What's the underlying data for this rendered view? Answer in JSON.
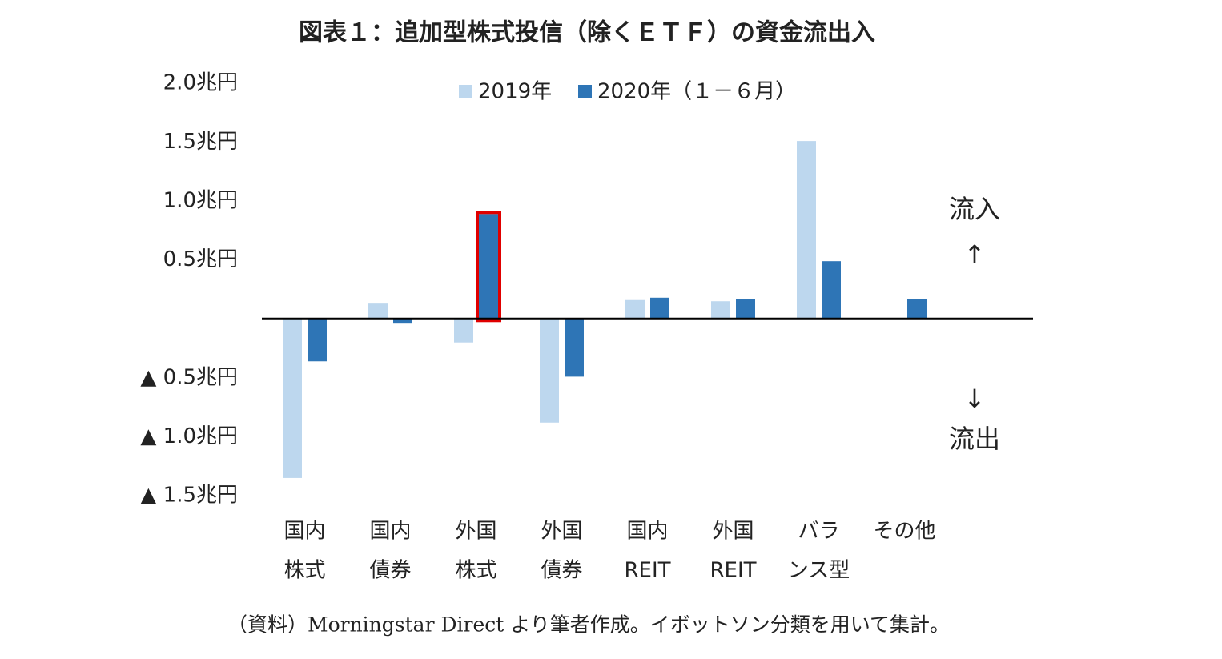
{
  "chart_data": {
    "type": "bar",
    "title": "図表１：追加型株式投信（除くＥＴＦ）の資金流出入",
    "categories": [
      [
        "国内",
        "株式"
      ],
      [
        "国内",
        "債券"
      ],
      [
        "外国",
        "株式"
      ],
      [
        "外国",
        "債券"
      ],
      [
        "国内",
        "REIT"
      ],
      [
        "外国",
        "REIT"
      ],
      [
        "バラ",
        "ンス型"
      ],
      [
        "その他"
      ]
    ],
    "series": [
      {
        "name": "2019年",
        "color": "#bdd7ee",
        "values": [
          -1.35,
          0.13,
          -0.2,
          -0.88,
          0.16,
          0.15,
          1.51,
          0
        ]
      },
      {
        "name": "2020年（１－６月）",
        "color": "#2e75b6",
        "values": [
          -0.36,
          -0.04,
          0.89,
          -0.49,
          0.18,
          0.17,
          0.49,
          0.17
        ]
      }
    ],
    "ylim": [
      -1.5,
      2.0
    ],
    "yticks": [
      {
        "value": 2.0,
        "label": "2.0兆円"
      },
      {
        "value": 1.5,
        "label": "1.5兆円"
      },
      {
        "value": 1.0,
        "label": "1.0兆円"
      },
      {
        "value": 0.5,
        "label": "0.5兆円"
      },
      {
        "value": -0.5,
        "label": "▲ 0.5兆円"
      },
      {
        "value": -1.0,
        "label": "▲ 1.0兆円"
      },
      {
        "value": -1.5,
        "label": "▲ 1.5兆円"
      }
    ],
    "grid": false,
    "legend": "top",
    "highlight": {
      "series": 1,
      "category": 2,
      "color": "#e00000"
    },
    "annotations": [
      "流入",
      "↑",
      "↓",
      "流出"
    ],
    "source": "（資料）Morningstar Direct より筆者作成。イボットソン分類を用いて集計。"
  }
}
